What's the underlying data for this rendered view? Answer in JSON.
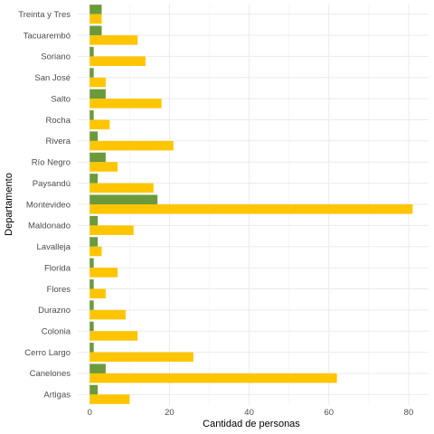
{
  "chart_data": {
    "type": "bar",
    "orientation": "horizontal",
    "title": "",
    "xlabel": "Cantidad de personas",
    "ylabel": "Departamento",
    "xlim": [
      -3,
      85
    ],
    "xticks": [
      0,
      20,
      40,
      60,
      80
    ],
    "grid": true,
    "legend": "none",
    "categories": [
      "Artigas",
      "Canelones",
      "Cerro Largo",
      "Colonia",
      "Durazno",
      "Flores",
      "Florida",
      "Lavalleja",
      "Maldonado",
      "Montevideo",
      "Paysandú",
      "Río Negro",
      "Rivera",
      "Rocha",
      "Salto",
      "San José",
      "Soriano",
      "Tacuarembó",
      "Treinta y Tres"
    ],
    "series": [
      {
        "color": "#6b9a3c",
        "values": [
          2,
          4,
          1,
          1,
          1,
          1,
          1,
          2,
          2,
          17,
          2,
          4,
          2,
          1,
          4,
          1,
          1,
          3,
          3
        ]
      },
      {
        "color": "#ffc500",
        "values": [
          10,
          62,
          26,
          12,
          9,
          4,
          7,
          3,
          11,
          81,
          16,
          7,
          21,
          5,
          18,
          4,
          14,
          12,
          3
        ]
      }
    ]
  }
}
